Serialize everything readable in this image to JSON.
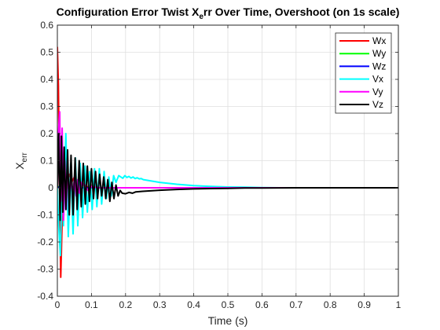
{
  "chart_data": {
    "type": "line",
    "title_parts": [
      "Configuration Error Twist X",
      "e",
      "rr Over Time, Overshoot (on 1s scale)"
    ],
    "xlabel": "Time (s)",
    "ylabel_parts": [
      "X",
      "err"
    ],
    "xlim": [
      0,
      1
    ],
    "ylim": [
      -0.4,
      0.6
    ],
    "xticks": [
      "0",
      "0.1",
      "0.2",
      "0.3",
      "0.4",
      "0.5",
      "0.6",
      "0.7",
      "0.8",
      "0.9",
      "1"
    ],
    "yticks": [
      "-0.4",
      "-0.3",
      "-0.2",
      "-0.1",
      "0",
      "0.1",
      "0.2",
      "0.3",
      "0.4",
      "0.5",
      "0.6"
    ],
    "grid": true,
    "legend_position": "top-right",
    "series": [
      {
        "name": "Wx",
        "color": "#ff0000",
        "x": [
          0,
          0.003,
          0.006,
          0.01,
          0.014,
          0.018,
          0.024,
          0.03,
          0.036,
          0.042,
          0.05,
          0.06,
          0.07,
          0.08,
          0.1,
          0.12,
          0.15,
          0.2,
          0.3,
          0.5,
          1.0
        ],
        "y": [
          0.52,
          0.38,
          0.05,
          -0.33,
          -0.12,
          0.05,
          0.02,
          0.03,
          0.05,
          0.02,
          0.04,
          0.01,
          0.02,
          0.0,
          0.01,
          0.0,
          0.0,
          0.0,
          0.0,
          0.0,
          0.0
        ]
      },
      {
        "name": "Wy",
        "color": "#00ff00",
        "x": [
          0,
          0.01,
          0.02,
          0.04,
          0.06,
          0.1,
          0.2,
          1.0
        ],
        "y": [
          0.0,
          0.01,
          -0.01,
          0.005,
          0.0,
          0.0,
          0.0,
          0.0
        ]
      },
      {
        "name": "Wz",
        "color": "#0000ff",
        "x": [
          0,
          0.01,
          0.02,
          0.04,
          0.06,
          0.1,
          0.2,
          1.0
        ],
        "y": [
          0.0,
          0.005,
          -0.005,
          0.003,
          0.0,
          0.0,
          0.0,
          0.0
        ]
      },
      {
        "name": "Vx",
        "color": "#00ffff",
        "x": [
          0,
          0.004,
          0.009,
          0.014,
          0.018,
          0.025,
          0.032,
          0.039,
          0.046,
          0.053,
          0.06,
          0.067,
          0.074,
          0.081,
          0.088,
          0.095,
          0.102,
          0.109,
          0.116,
          0.123,
          0.13,
          0.137,
          0.144,
          0.151,
          0.158,
          0.165,
          0.172,
          0.18,
          0.186,
          0.192,
          0.198,
          0.204,
          0.21,
          0.216,
          0.222,
          0.228,
          0.234,
          0.24,
          0.246,
          0.252,
          0.3,
          0.35,
          0.4,
          0.45,
          0.5,
          0.55,
          0.6,
          0.65,
          0.7,
          0.8,
          1.0
        ],
        "y": [
          0.0,
          -0.14,
          -0.25,
          0.05,
          -0.14,
          0.2,
          -0.18,
          0.09,
          -0.17,
          0.11,
          -0.14,
          0.09,
          -0.11,
          0.08,
          -0.09,
          0.06,
          -0.08,
          0.07,
          -0.07,
          0.07,
          -0.06,
          0.06,
          -0.04,
          0.04,
          -0.03,
          0.045,
          0.02,
          0.045,
          0.04,
          0.035,
          0.045,
          0.038,
          0.042,
          0.036,
          0.04,
          0.034,
          0.037,
          0.033,
          0.034,
          0.03,
          0.02,
          0.013,
          0.008,
          0.005,
          0.003,
          0.002,
          0.001,
          0.0,
          0.0,
          0.0,
          0.0
        ]
      },
      {
        "name": "Vy",
        "color": "#ff00ff",
        "x": [
          0,
          0.003,
          0.007,
          0.01,
          0.014,
          0.018,
          0.022,
          0.026,
          0.03,
          0.035,
          0.04,
          0.045,
          0.05,
          0.055,
          0.06,
          0.065,
          0.07,
          0.08,
          0.09,
          0.1,
          0.12,
          0.15,
          0.2,
          0.3,
          1.0
        ],
        "y": [
          0.0,
          0.2,
          0.28,
          -0.05,
          0.22,
          -0.12,
          0.1,
          -0.08,
          0.09,
          -0.05,
          0.06,
          -0.04,
          0.04,
          -0.03,
          0.03,
          -0.02,
          0.02,
          0.01,
          -0.01,
          0.005,
          0.0,
          0.0,
          0.0,
          0.0,
          0.0
        ]
      },
      {
        "name": "Vz",
        "color": "#000000",
        "x": [
          0,
          0.004,
          0.008,
          0.012,
          0.016,
          0.02,
          0.025,
          0.03,
          0.035,
          0.04,
          0.046,
          0.052,
          0.058,
          0.064,
          0.07,
          0.076,
          0.082,
          0.088,
          0.094,
          0.1,
          0.106,
          0.112,
          0.118,
          0.124,
          0.13,
          0.136,
          0.142,
          0.148,
          0.154,
          0.16,
          0.166,
          0.172,
          0.178,
          0.184,
          0.19,
          0.2,
          0.21,
          0.22,
          0.23,
          0.25,
          0.3,
          0.35,
          0.4,
          0.45,
          0.5,
          0.55,
          0.6,
          0.7,
          0.8,
          0.9,
          1.0
        ],
        "y": [
          0.0,
          0.2,
          -0.12,
          0.19,
          -0.09,
          0.15,
          -0.08,
          0.14,
          -0.1,
          0.12,
          -0.1,
          0.11,
          -0.08,
          0.1,
          -0.07,
          0.09,
          -0.06,
          0.08,
          -0.05,
          0.07,
          -0.04,
          0.06,
          -0.04,
          0.05,
          -0.03,
          0.04,
          -0.04,
          0.03,
          -0.05,
          0.02,
          -0.04,
          0.01,
          -0.03,
          -0.01,
          -0.02,
          -0.022,
          -0.017,
          -0.02,
          -0.015,
          -0.013,
          -0.009,
          -0.006,
          -0.004,
          -0.003,
          -0.002,
          -0.001,
          -0.001,
          0.0,
          0.0,
          0.0,
          0.0
        ]
      }
    ]
  }
}
